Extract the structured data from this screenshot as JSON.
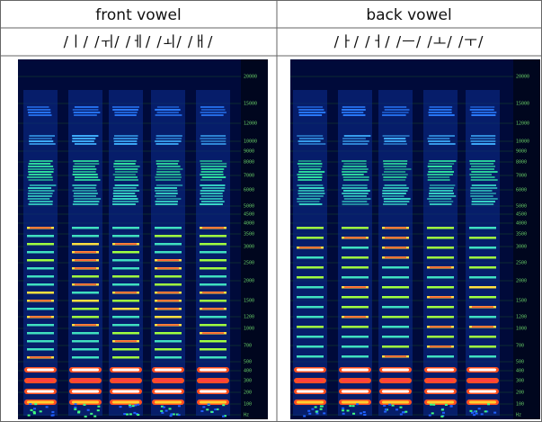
{
  "header": {
    "columns": [
      "front vowel",
      "back vowel"
    ]
  },
  "vowels": [
    "/ㅣ/ /ㅟ/ /ㅔ/ /ㅚ/ /ㅐ/",
    "/ㅏ/ /ㅓ/ /ㅡ/ /ㅗ/ /ㅜ/"
  ],
  "frequency_axis": {
    "labels": [
      20000,
      15000,
      12000,
      10000,
      9000,
      8000,
      7000,
      6000,
      5000,
      4500,
      4000,
      3500,
      3000,
      2500,
      2000,
      1500,
      1200,
      1000,
      700,
      500,
      400,
      300,
      200,
      100,
      "Hz"
    ]
  }
}
